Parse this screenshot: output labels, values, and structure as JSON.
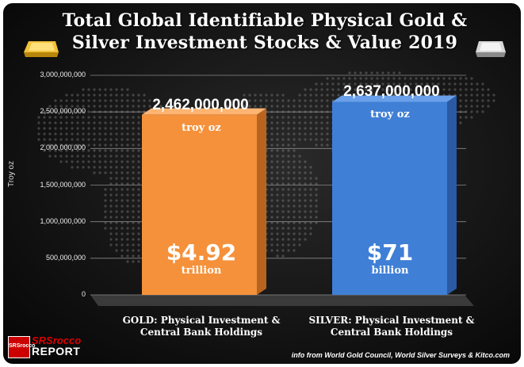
{
  "chart_data": {
    "type": "bar",
    "title": "Total Global Identifiable Physical Gold & Silver Investment Stocks & Value 2019",
    "title_lines": [
      "Total Global Identifiable Physical Gold &",
      "Silver Investment Stocks & Value 2019"
    ],
    "ylabel": "Troy oz",
    "ylim": [
      0,
      3000000000
    ],
    "yticks": [
      "0",
      "500,000,000",
      "1,000,000,000",
      "1,500,000,000",
      "2,000,000,000",
      "2,500,000,000",
      "3,000,000,000"
    ],
    "categories": [
      "GOLD: Physical Investment & Central Bank Holdings",
      "SILVER: Physical Investment & Central Bank Holdings"
    ],
    "category_lines": [
      [
        "GOLD: Physical Investment &",
        "Central Bank Holdings"
      ],
      [
        "SILVER: Physical Investment &",
        "Central Bank Holdings"
      ]
    ],
    "values": [
      2462000000,
      2637000000
    ],
    "value_labels": [
      "2,462,000,000",
      "2,637,000,000"
    ],
    "value_unit": "troy oz",
    "dollar_values": [
      "$4.92",
      "$71"
    ],
    "dollar_units": [
      "trillion",
      "billion"
    ],
    "colors": [
      "#f5913b",
      "#3f7fd6"
    ],
    "grid": true
  },
  "branding": {
    "logo_badge": "SRSrocco",
    "logo_line1": "SRSrocco",
    "logo_line2": "REPORT"
  },
  "source": "info from World Gold Council, World Silver Surveys & Kitco.com"
}
